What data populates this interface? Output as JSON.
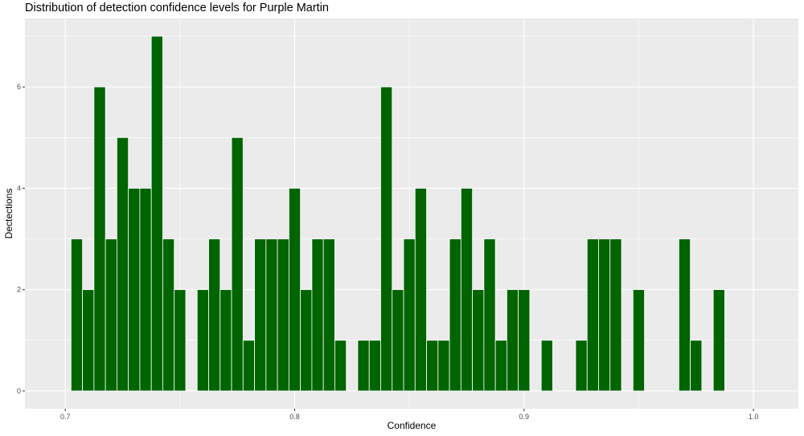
{
  "chart_data": {
    "type": "bar",
    "title": "Distribution of detection confidence levels for Purple Martin",
    "xlabel": "Confidence",
    "ylabel": "Dectections",
    "xlim": [
      0.6824,
      1.0196
    ],
    "ylim": [
      -0.35,
      7.35
    ],
    "xticks": [
      0.7,
      0.8,
      0.9,
      1.0
    ],
    "xtick_labels": [
      "0.7",
      "0.8",
      "0.9",
      "1.0"
    ],
    "yticks": [
      0,
      2,
      4,
      6
    ],
    "ytick_labels": [
      "0",
      "2",
      "4",
      "6"
    ],
    "bin_width": 0.005,
    "fill_color": "#006400",
    "edge_color": "#ffffff",
    "panel_color": "#ebebeb",
    "grid": true,
    "x": [
      0.705,
      0.71,
      0.715,
      0.72,
      0.725,
      0.73,
      0.735,
      0.74,
      0.745,
      0.75,
      0.755,
      0.76,
      0.765,
      0.77,
      0.775,
      0.78,
      0.785,
      0.79,
      0.795,
      0.8,
      0.805,
      0.81,
      0.815,
      0.82,
      0.825,
      0.83,
      0.835,
      0.84,
      0.845,
      0.85,
      0.855,
      0.86,
      0.865,
      0.87,
      0.875,
      0.88,
      0.885,
      0.89,
      0.895,
      0.9,
      0.905,
      0.91,
      0.915,
      0.92,
      0.925,
      0.93,
      0.935,
      0.94,
      0.945,
      0.95,
      0.955,
      0.96,
      0.965,
      0.97,
      0.975,
      0.98,
      0.985
    ],
    "values": [
      3,
      2,
      6,
      3,
      5,
      4,
      4,
      7,
      3,
      2,
      0,
      2,
      3,
      2,
      5,
      1,
      3,
      3,
      3,
      4,
      2,
      3,
      3,
      1,
      0,
      1,
      1,
      6,
      2,
      3,
      4,
      1,
      1,
      3,
      4,
      2,
      3,
      1,
      2,
      2,
      0,
      1,
      0,
      0,
      1,
      3,
      3,
      3,
      0,
      2,
      0,
      0,
      0,
      3,
      1,
      0,
      2
    ]
  }
}
